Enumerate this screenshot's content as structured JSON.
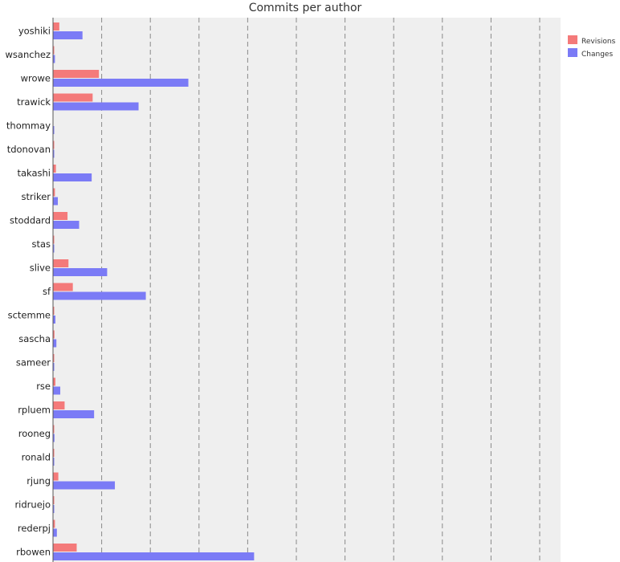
{
  "chart_data": {
    "type": "bar",
    "orientation": "horizontal",
    "title": "Commits per author",
    "xlabel": "",
    "ylabel": "",
    "xlim": [
      0,
      1050
    ],
    "grid": true,
    "legend_position": "top-right",
    "categories": [
      "yoshiki",
      "wsanchez",
      "wrowe",
      "trawick",
      "thommay",
      "tdonovan",
      "takashi",
      "striker",
      "stoddard",
      "stas",
      "slive",
      "sf",
      "sctemme",
      "sascha",
      "sameer",
      "rse",
      "rpluem",
      "rooneg",
      "ronald",
      "rjung",
      "ridruejo",
      "rederpj",
      "rbowen"
    ],
    "series": [
      {
        "name": "Revisions",
        "color": "#f47a7a",
        "values": [
          13,
          2,
          95,
          82,
          0,
          1,
          6,
          4,
          30,
          1,
          32,
          41,
          2,
          3,
          1,
          5,
          24,
          1,
          1,
          11,
          1,
          4,
          49
        ]
      },
      {
        "name": "Changes",
        "color": "#7b7bf6",
        "values": [
          61,
          4,
          280,
          177,
          2,
          1,
          80,
          10,
          54,
          1,
          112,
          192,
          5,
          7,
          1,
          15,
          85,
          3,
          1,
          128,
          1,
          8,
          416
        ]
      }
    ]
  }
}
